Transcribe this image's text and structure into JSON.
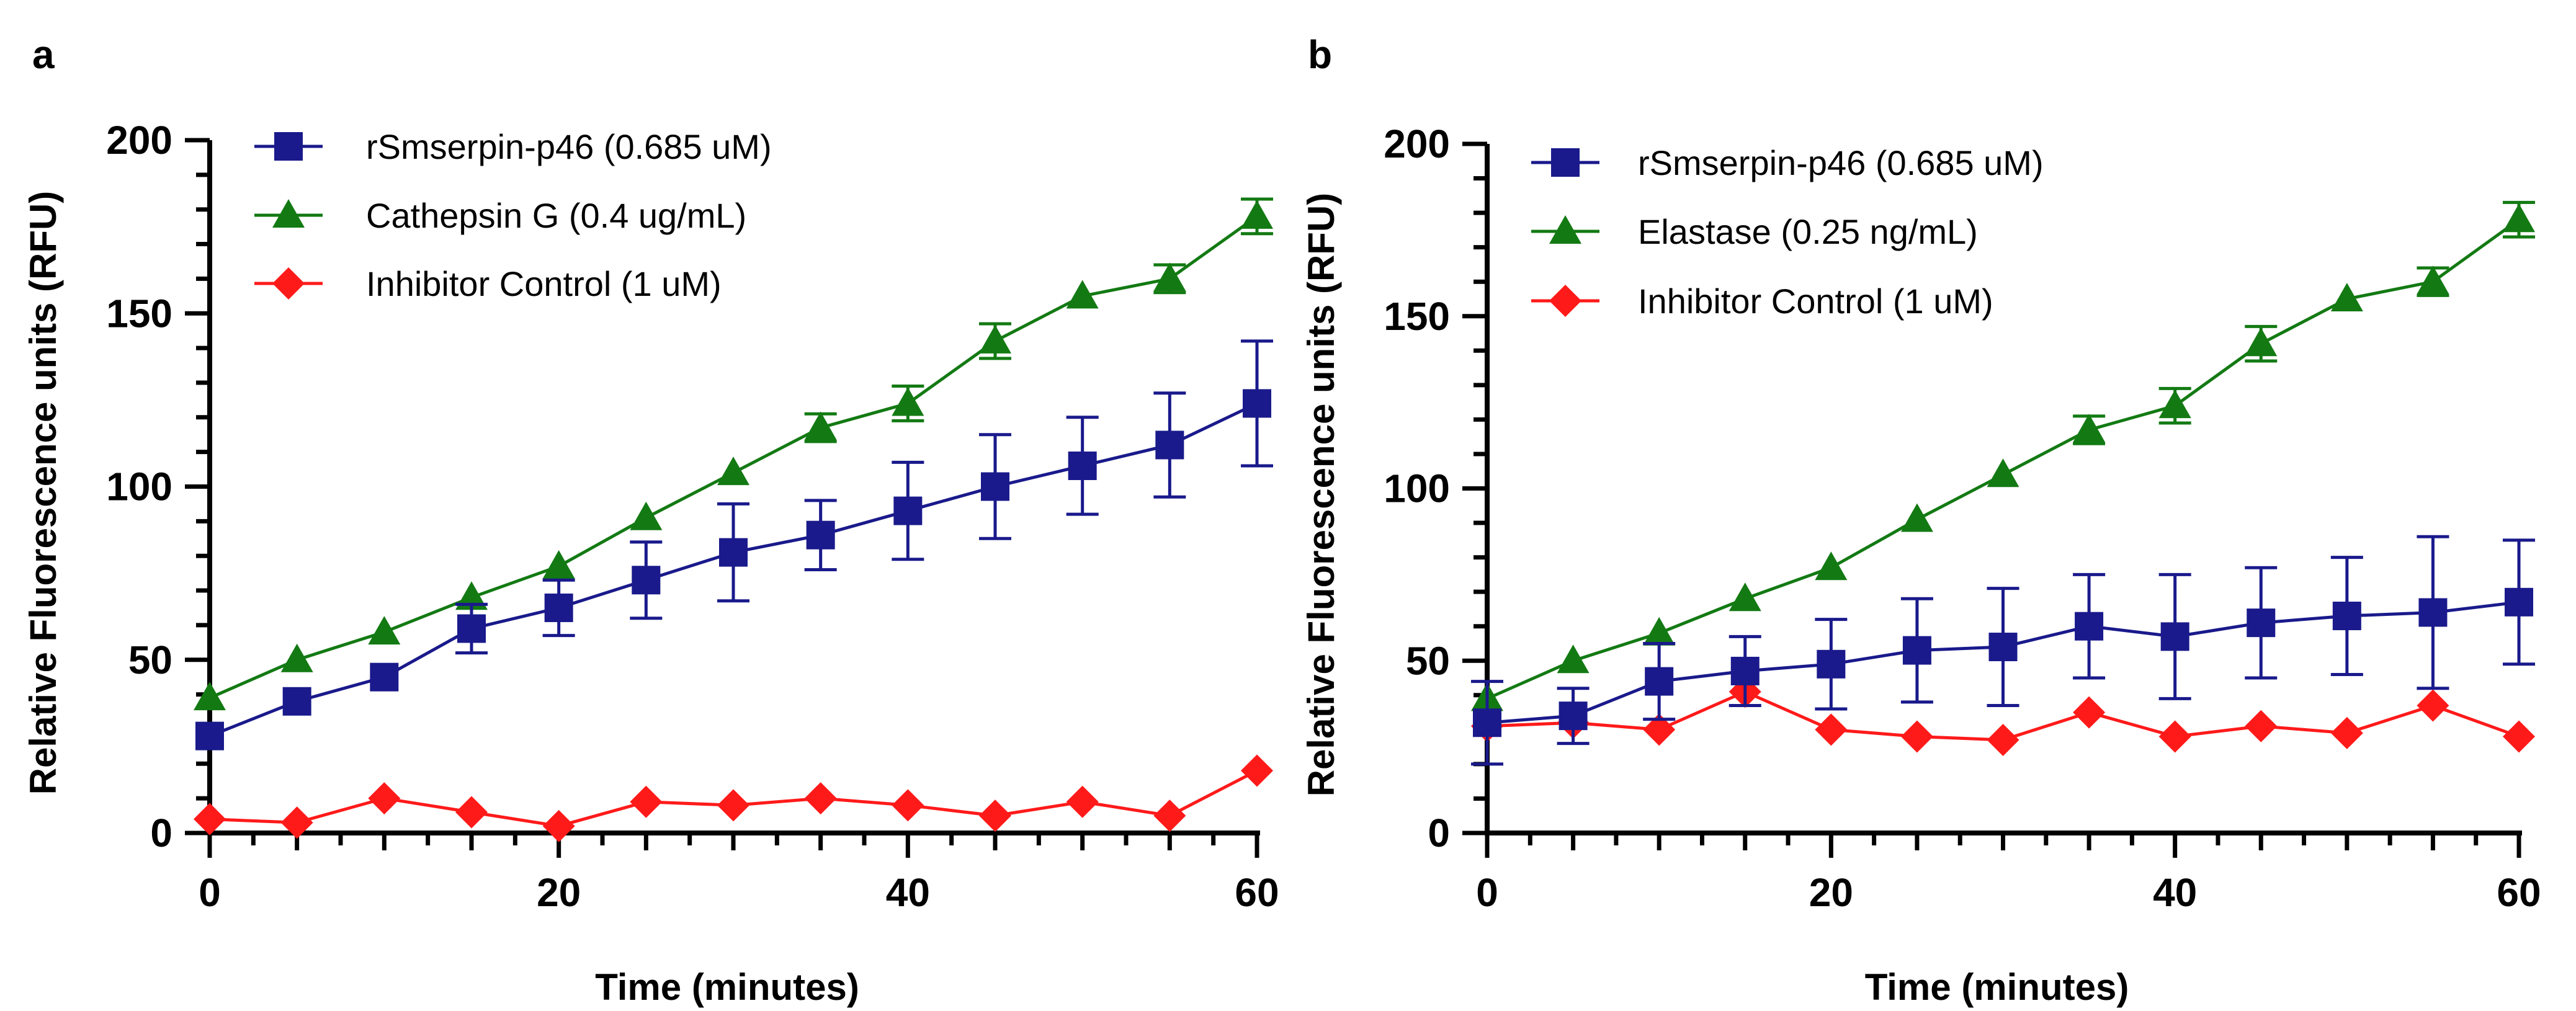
{
  "chart_data": [
    {
      "type": "line",
      "panel_label": "a",
      "xlabel": "Time (minutes)",
      "ylabel": "Relative Fluorescence units (RFU)",
      "xlim": [
        0,
        60
      ],
      "ylim": [
        0,
        200
      ],
      "x_ticks": [
        "0",
        "20",
        "40",
        "60"
      ],
      "y_ticks": [
        "0",
        "50",
        "100",
        "150",
        "200"
      ],
      "legend_position": "top-left",
      "x": [
        0,
        5,
        10,
        15,
        20,
        25,
        30,
        35,
        40,
        45,
        50,
        55,
        60
      ],
      "series": [
        {
          "name": "rSmserpin-p46 (0.685 uM)",
          "color": "#1a1a8c",
          "marker": "square",
          "values": [
            28,
            38,
            45,
            59,
            65,
            73,
            81,
            86,
            93,
            100,
            106,
            112,
            124
          ],
          "errors": [
            0,
            0,
            0,
            7,
            8,
            11,
            14,
            10,
            14,
            15,
            14,
            15,
            18
          ]
        },
        {
          "name": "Cathepsin G (0.4 ug/mL)",
          "color": "#137a13",
          "marker": "triangle",
          "values": [
            39,
            50,
            58,
            68,
            77,
            91,
            104,
            117,
            124,
            142,
            155,
            160,
            178
          ],
          "errors": [
            0,
            0,
            0,
            0,
            0,
            0,
            0,
            4,
            5,
            5,
            0,
            4,
            5
          ]
        },
        {
          "name": "Inhibitor Control (1 uM)",
          "color": "#ff1a1a",
          "marker": "diamond",
          "values": [
            4,
            3,
            10,
            6,
            2,
            9,
            8,
            10,
            8,
            5,
            9,
            5,
            18
          ],
          "errors": [
            0,
            0,
            0,
            0,
            0,
            0,
            0,
            0,
            0,
            0,
            0,
            0,
            0
          ]
        }
      ]
    },
    {
      "type": "line",
      "panel_label": "b",
      "xlabel": "Time (minutes)",
      "ylabel": "Relative Fluorescence units (RFU)",
      "xlim": [
        0,
        60
      ],
      "ylim": [
        0,
        200
      ],
      "x_ticks": [
        "0",
        "20",
        "40",
        "60"
      ],
      "y_ticks": [
        "0",
        "50",
        "100",
        "150",
        "200"
      ],
      "legend_position": "top-left",
      "x": [
        0,
        5,
        10,
        15,
        20,
        25,
        30,
        35,
        40,
        45,
        50,
        55,
        60
      ],
      "series": [
        {
          "name": "rSmserpin-p46 (0.685 uM)",
          "color": "#1a1a8c",
          "marker": "square",
          "values": [
            32,
            34,
            44,
            47,
            49,
            53,
            54,
            60,
            57,
            61,
            63,
            64,
            67
          ],
          "errors": [
            12,
            8,
            11,
            10,
            13,
            15,
            17,
            15,
            18,
            16,
            17,
            22,
            18
          ]
        },
        {
          "name": "Elastase (0.25 ng/mL)",
          "color": "#137a13",
          "marker": "triangle",
          "values": [
            39,
            50,
            58,
            68,
            77,
            91,
            104,
            117,
            124,
            142,
            155,
            160,
            178
          ],
          "errors": [
            0,
            0,
            0,
            0,
            0,
            0,
            0,
            4,
            5,
            5,
            0,
            4,
            5
          ]
        },
        {
          "name": "Inhibitor Control (1 uM)",
          "color": "#ff1a1a",
          "marker": "diamond",
          "values": [
            31,
            32,
            30,
            41,
            30,
            28,
            27,
            35,
            28,
            31,
            29,
            37,
            28
          ],
          "errors": [
            0,
            0,
            0,
            0,
            0,
            0,
            0,
            0,
            0,
            0,
            0,
            0,
            0
          ]
        }
      ]
    }
  ]
}
